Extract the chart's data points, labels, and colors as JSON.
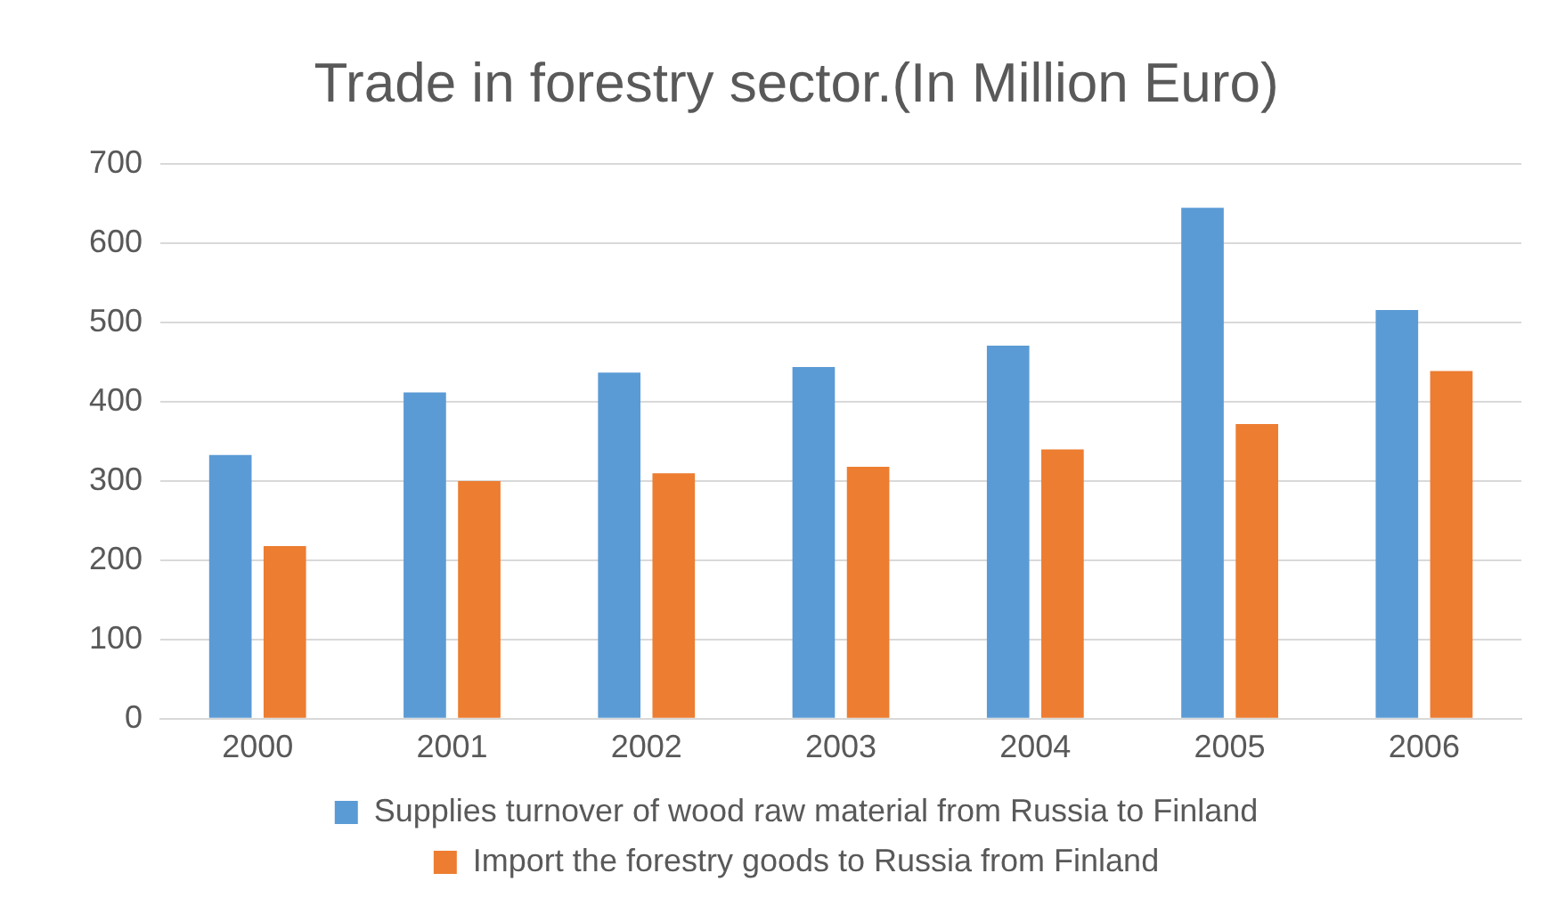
{
  "chart_data": {
    "type": "bar",
    "title": "Trade in forestry sector.(In Million Euro)",
    "categories": [
      "2000",
      "2001",
      "2002",
      "2003",
      "2004",
      "2005",
      "2006"
    ],
    "series": [
      {
        "name": "Supplies turnover of wood raw material from Russia to Finland",
        "color": "#5b9bd5",
        "values": [
          333,
          412,
          437,
          444,
          471,
          645,
          516
        ]
      },
      {
        "name": "Import the forestry goods to Russia from Finland",
        "color": "#ed7d31",
        "values": [
          218,
          300,
          310,
          318,
          340,
          372,
          439
        ]
      }
    ],
    "ylim": [
      0,
      700
    ],
    "yticks": [
      0,
      100,
      200,
      300,
      400,
      500,
      600,
      700
    ],
    "grid": "y",
    "legend": "bottom"
  }
}
